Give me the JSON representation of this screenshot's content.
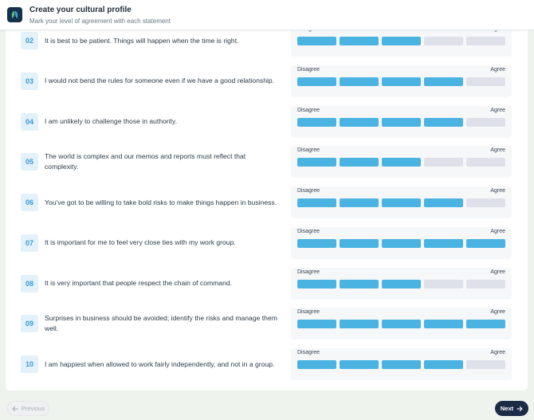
{
  "header": {
    "title": "Create your cultural profile",
    "subtitle": "Mark your level of agreement with each statement",
    "logo_icon": "leaf-logo-icon"
  },
  "scale_labels": {
    "left": "Disagree",
    "right": "Agree"
  },
  "colors": {
    "selected": "#4ab3e2",
    "unselected": "#dfe1ea",
    "number_bg": "#e2f1fa",
    "number_text": "#3a9cd6",
    "next_button": "#1c2b47"
  },
  "questions": [
    {
      "number": "02",
      "text": "It is best to be patient. Things will happen when the time is right.",
      "level": 3
    },
    {
      "number": "03",
      "text": "I would not bend the rules for someone even if we have a good relationship.",
      "level": 4
    },
    {
      "number": "04",
      "text": "I am unlikely to challenge those in authority.",
      "level": 4
    },
    {
      "number": "05",
      "text": "The world is complex and our memos and reports must reflect that complexity.",
      "level": 3
    },
    {
      "number": "06",
      "text": "You’ve got to be willing to take bold risks to make things happen in business.",
      "level": 4
    },
    {
      "number": "07",
      "text": "It is important for me to feel very close ties with my work group.",
      "level": 5
    },
    {
      "number": "08",
      "text": "It is very important that people respect the chain of command.",
      "level": 3
    },
    {
      "number": "09",
      "text": "Surprises in business should be avoided; identify the risks and manage them well.",
      "level": 5
    },
    {
      "number": "10",
      "text": "I am happiest when allowed to work fairly independently, and not in a group.",
      "level": 4
    }
  ],
  "footer": {
    "previous_label": "Previous",
    "next_label": "Next",
    "previous_icon": "arrow-left-icon",
    "next_icon": "arrow-right-icon"
  }
}
